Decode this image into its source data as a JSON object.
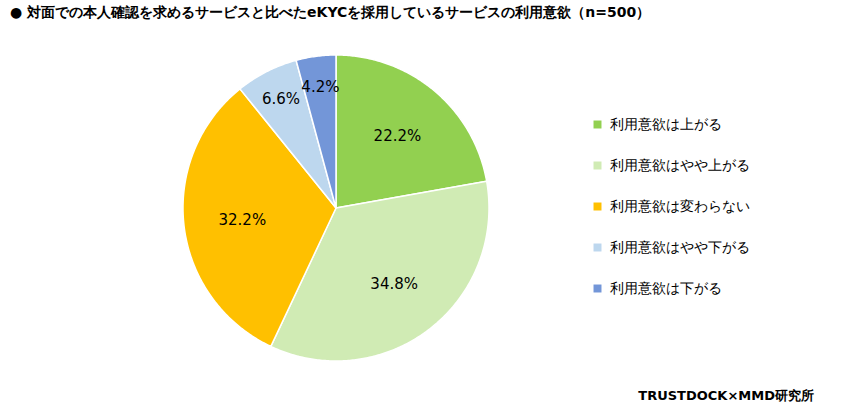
{
  "chart_data": {
    "type": "pie",
    "title": "● 対面での本人確認を求めるサービスと比べたeKYCを採用しているサービスの利用意欲（n=500）",
    "categories": [
      "利用意欲は上がる",
      "利用意欲はやや上がる",
      "利用意欲は変わらない",
      "利用意欲はやや下がる",
      "利用意欲は下がる"
    ],
    "values": [
      22.2,
      34.8,
      32.2,
      6.6,
      4.2
    ],
    "value_labels": [
      "22.2%",
      "34.8%",
      "32.2%",
      "6.6%",
      "4.2%"
    ],
    "colors": [
      "#92D050",
      "#D0EBB4",
      "#FFC000",
      "#BDD7EE",
      "#7396D8"
    ],
    "data_labels": true,
    "legend": "right",
    "caption": "TRUSTDOCK×MMD研究所"
  }
}
